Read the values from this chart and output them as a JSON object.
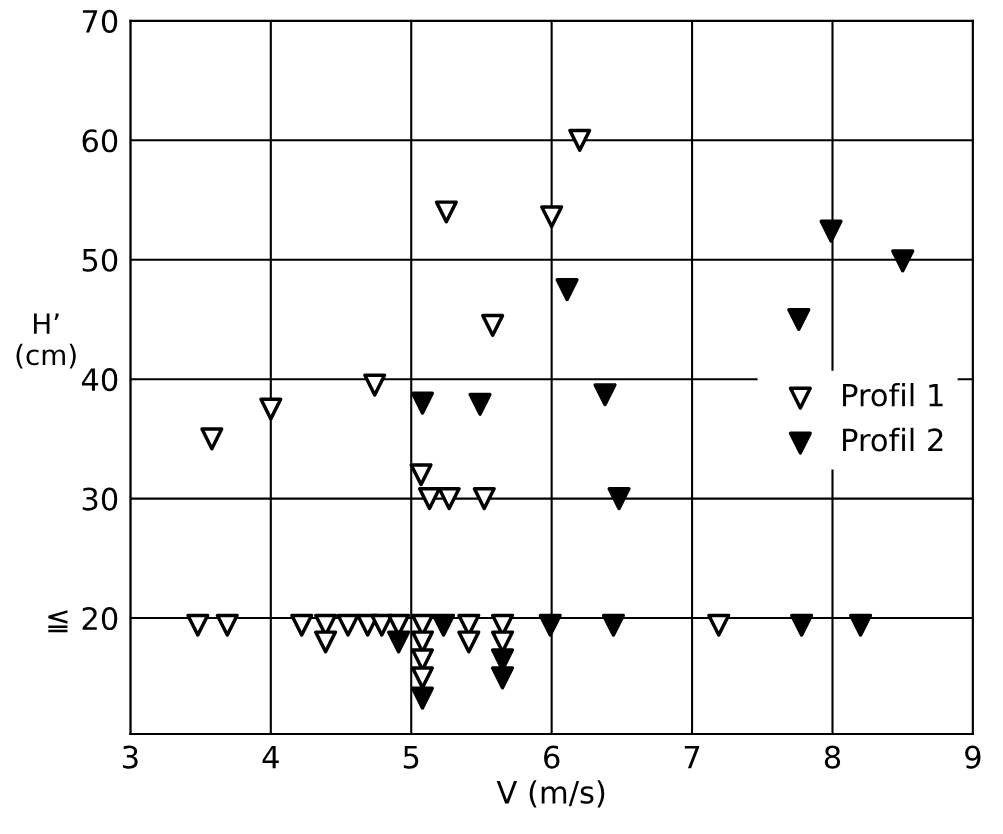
{
  "chart_data": {
    "type": "scatter",
    "xlabel": "V (m/s)",
    "ylabel": "H’\n(cm)",
    "xlim": [
      3,
      9
    ],
    "xticks": [
      3,
      4,
      5,
      6,
      7,
      8,
      9
    ],
    "ylim": [
      10.3,
      70
    ],
    "yticks": [
      {
        "value": 20,
        "label": "≦ 20"
      },
      30,
      40,
      50,
      60,
      70
    ],
    "grid": true,
    "legend": "right",
    "marker": "triangle",
    "series": [
      {
        "name": "Profil 1",
        "color": "#ffffff",
        "x": [
          3.58,
          4.0,
          4.74,
          5.07,
          5.13,
          5.27,
          5.52,
          5.25,
          6.0,
          5.58,
          6.2,
          3.48,
          3.69,
          4.22,
          4.39,
          4.39,
          4.55,
          4.69,
          4.79,
          4.91,
          5.08,
          5.08,
          5.08,
          5.08,
          5.41,
          5.41,
          5.65,
          5.65,
          7.19
        ],
        "values": [
          35,
          37.5,
          39.5,
          32,
          30,
          30,
          30,
          54,
          53.6,
          44.5,
          60,
          19.4,
          19.4,
          19.4,
          19.4,
          18.0,
          19.4,
          19.4,
          19.4,
          19.4,
          19.4,
          18.0,
          16.5,
          15.0,
          19.4,
          18.0,
          19.4,
          18.0,
          19.4
        ]
      },
      {
        "name": "Profil 2",
        "color": "#000000",
        "x": [
          7.99,
          8.5,
          6.11,
          7.76,
          5.08,
          5.49,
          6.38,
          6.48,
          4.91,
          5.08,
          5.23,
          5.65,
          5.65,
          5.99,
          6.44,
          7.78,
          8.2
        ],
        "values": [
          52.4,
          49.9,
          47.5,
          45.0,
          38.0,
          37.9,
          38.7,
          30.0,
          18.0,
          13.3,
          19.4,
          16.5,
          15.0,
          19.4,
          19.4,
          19.4,
          19.4
        ]
      }
    ]
  }
}
